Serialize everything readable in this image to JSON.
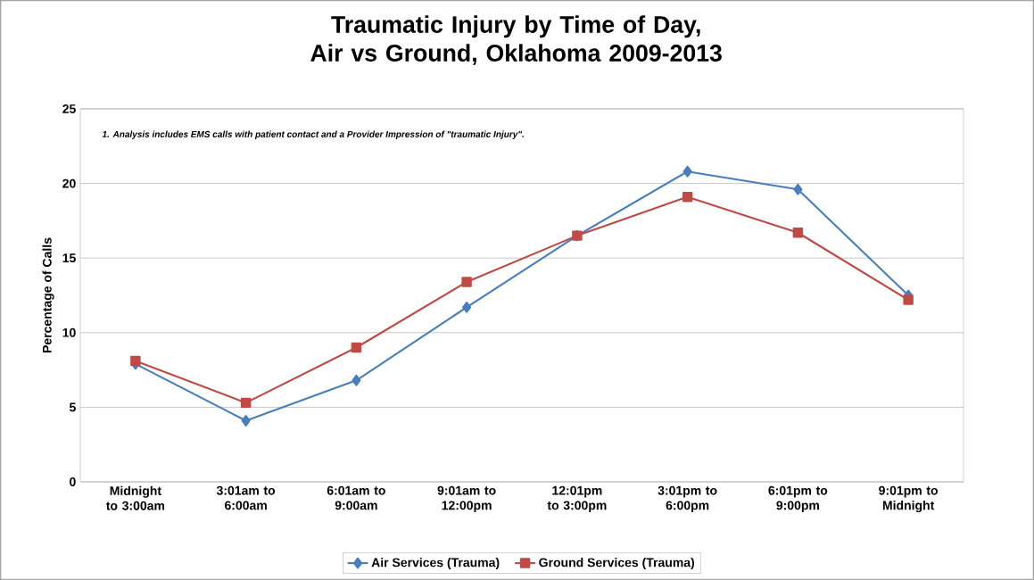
{
  "chart_data": {
    "type": "line",
    "title": "Traumatic Injury by Time of Day, Air vs Ground, Oklahoma 2009-2013",
    "ylabel": "Percentage of Calls",
    "annotations": [
      "1.  Analysis includes EMS calls with patient contact and a Provider Impression of \"traumatic Injury\"."
    ],
    "categories": [
      "Midnight to 3:00am",
      "3:01am to 6:00am",
      "6:01am to 9:00am",
      "9:01am to 12:00pm",
      "12:01pm to 3:00pm",
      "3:01pm to 6:00pm",
      "6:01pm to 9:00pm",
      "9:01pm to Midnight"
    ],
    "series": [
      {
        "name": "Air Services (Trauma)",
        "color": "#4a7ebb",
        "marker": "diamond",
        "values": [
          7.9,
          4.1,
          6.8,
          11.7,
          16.5,
          20.8,
          19.6,
          12.5
        ]
      },
      {
        "name": "Ground Services (Trauma)",
        "color": "#be4b48",
        "marker": "square",
        "values": [
          8.1,
          5.3,
          9.0,
          13.4,
          16.5,
          19.1,
          16.7,
          12.2
        ]
      }
    ],
    "ylim": [
      0,
      25
    ],
    "yticks": [
      0,
      5,
      10,
      15,
      20,
      25
    ],
    "grid": "y",
    "legend": "bottom",
    "line_style": "solid"
  }
}
